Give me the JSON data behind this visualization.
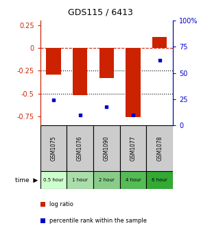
{
  "title": "GDS115 / 6413",
  "samples": [
    "GSM1075",
    "GSM1076",
    "GSM1090",
    "GSM1077",
    "GSM1078"
  ],
  "time_labels": [
    "0.5 hour",
    "1 hour",
    "2 hour",
    "4 hour",
    "6 hour"
  ],
  "time_colors": [
    "#ccffcc",
    "#aaddaa",
    "#88cc88",
    "#55bb55",
    "#33aa33"
  ],
  "log_ratios": [
    -0.29,
    -0.52,
    -0.33,
    -0.76,
    0.12
  ],
  "percentile_ranks": [
    24,
    10,
    18,
    10,
    62
  ],
  "bar_color": "#cc2200",
  "dot_color": "#0000cc",
  "ylim_left": [
    -0.85,
    0.3
  ],
  "ylim_right": [
    0,
    100
  ],
  "y_ticks_left": [
    0.25,
    0.0,
    -0.25,
    -0.5,
    -0.75
  ],
  "y_ticks_right": [
    100,
    75,
    50,
    25,
    0
  ],
  "hline_positions": [
    0,
    -0.25,
    -0.5
  ],
  "hline_styles": [
    "--",
    ":",
    ":"
  ],
  "hline_colors": [
    "#cc2200",
    "#000000",
    "#000000"
  ]
}
